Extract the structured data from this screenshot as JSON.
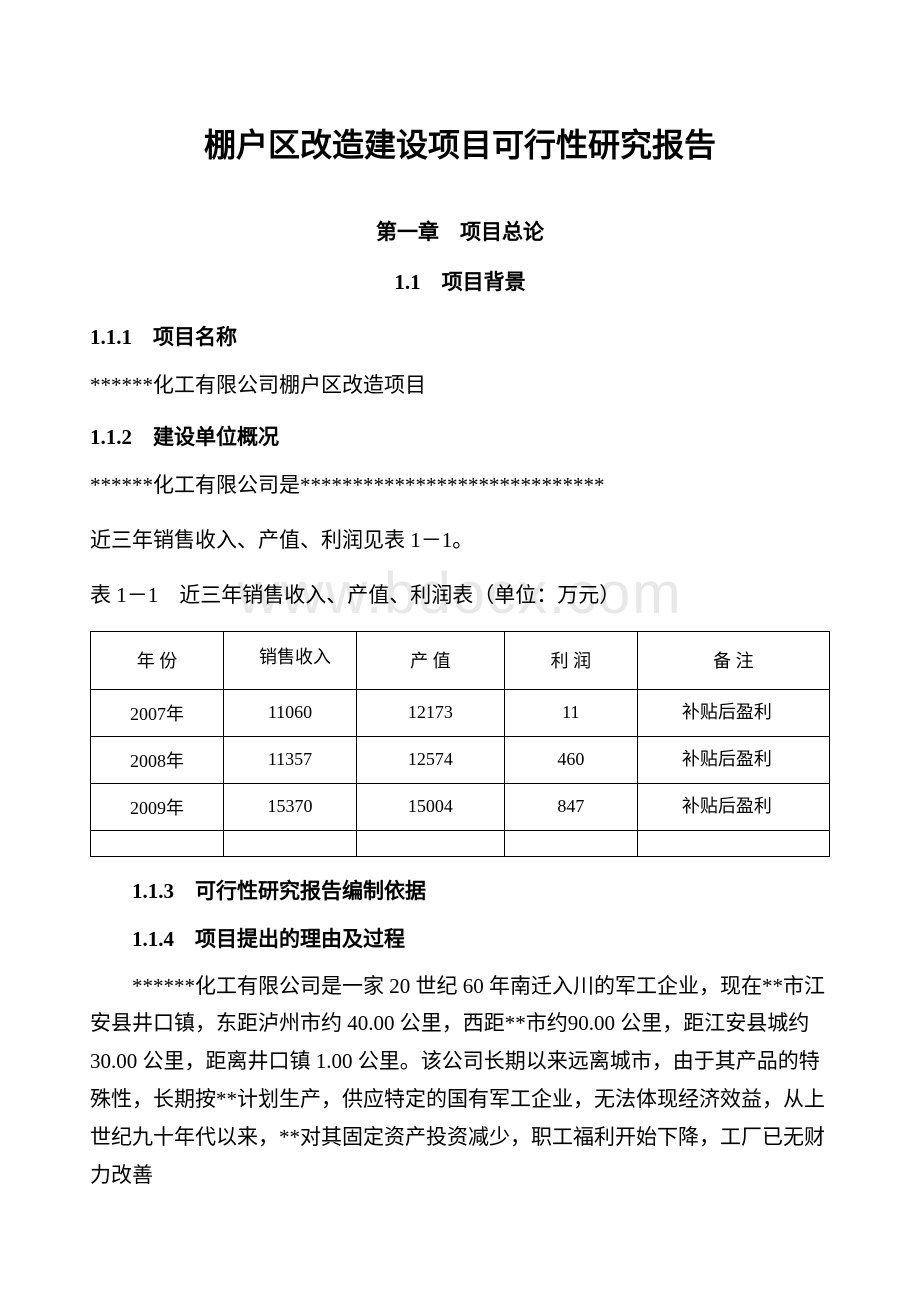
{
  "document": {
    "title": "棚户区改造建设项目可行性研究报告",
    "chapter_title": "第一章　项目总论",
    "section_title": "1.1　项目背景",
    "watermark": "www.bdocx.com"
  },
  "sections": {
    "s111": {
      "heading": "1.1.1　项目名称",
      "body": "******化工有限公司棚户区改造项目"
    },
    "s112": {
      "heading": "1.1.2　建设单位概况",
      "body1": "******化工有限公司是*****************************",
      "body2": "近三年销售收入、产值、利润见表 1－1。",
      "table_caption": "表 1－1　近三年销售收入、产值、利润表（单位：万元）"
    },
    "s113": {
      "heading": "1.1.3　可行性研究报告编制依据"
    },
    "s114": {
      "heading": "1.1.4　项目提出的理由及过程",
      "body": "******化工有限公司是一家 20 世纪 60 年南迁入川的军工企业，现在**市江安县井口镇，东距泸州市约 40.00 公里，西距**市约90.00 公里，距江安县城约 30.00 公里，距离井口镇 1.00 公里。该公司长期以来远离城市，由于其产品的特殊性，长期按**计划生产，供应特定的国有军工企业，无法体现经济效益，从上世纪九十年代以来，**对其固定资产投资减少，职工福利开始下降，工厂已无财力改善"
    }
  },
  "table": {
    "headers": {
      "year": "年 份",
      "sales": "销售收入",
      "production": "产 值",
      "profit": "利 润",
      "note": "备 注"
    },
    "rows": [
      {
        "year": "2007年",
        "sales": "11060",
        "production": "12173",
        "profit": "11",
        "note": "补贴后盈利"
      },
      {
        "year": "2008年",
        "sales": "11357",
        "production": "12574",
        "profit": "460",
        "note": "补贴后盈利"
      },
      {
        "year": "2009年",
        "sales": "15370",
        "production": "15004",
        "profit": "847",
        "note": "补贴后盈利"
      }
    ]
  },
  "styles": {
    "background_color": "#ffffff",
    "text_color": "#000000",
    "watermark_color": "#e8e8e8",
    "border_color": "#000000",
    "title_fontsize": 32,
    "body_fontsize": 21,
    "table_fontsize": 18
  }
}
